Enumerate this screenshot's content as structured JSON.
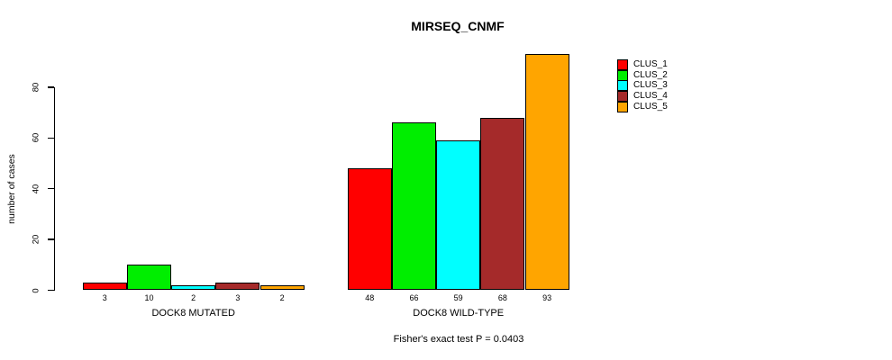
{
  "chart_data": {
    "type": "bar",
    "title": "MIRSEQ_CNMF",
    "ylabel": "number of cases",
    "xlabel": "",
    "ylim": [
      0,
      93
    ],
    "grid": false,
    "legend_position": "right",
    "bar_border_color": "#000000",
    "categories": [
      "DOCK8 MUTATED",
      "DOCK8 WILD-TYPE"
    ],
    "series": [
      {
        "name": "CLUS_1",
        "color": "#ff0000",
        "values": [
          3,
          48
        ]
      },
      {
        "name": "CLUS_2",
        "color": "#00ee00",
        "values": [
          10,
          66
        ]
      },
      {
        "name": "CLUS_3",
        "color": "#00ffff",
        "values": [
          2,
          59
        ]
      },
      {
        "name": "CLUS_4",
        "color": "#a52a2a",
        "values": [
          3,
          68
        ]
      },
      {
        "name": "CLUS_5",
        "color": "#ffa500",
        "values": [
          2,
          93
        ]
      }
    ],
    "y_axis": {
      "ticks": [
        0,
        20,
        40,
        60,
        80
      ]
    },
    "value_labels": {
      "DOCK8 MUTATED": [
        "3",
        "10",
        "2",
        "3",
        "2"
      ],
      "DOCK8 WILD-TYPE": [
        "48",
        "66",
        "59",
        "68",
        "93"
      ]
    },
    "annotation": "Fisher's exact test P = 0.0403"
  }
}
